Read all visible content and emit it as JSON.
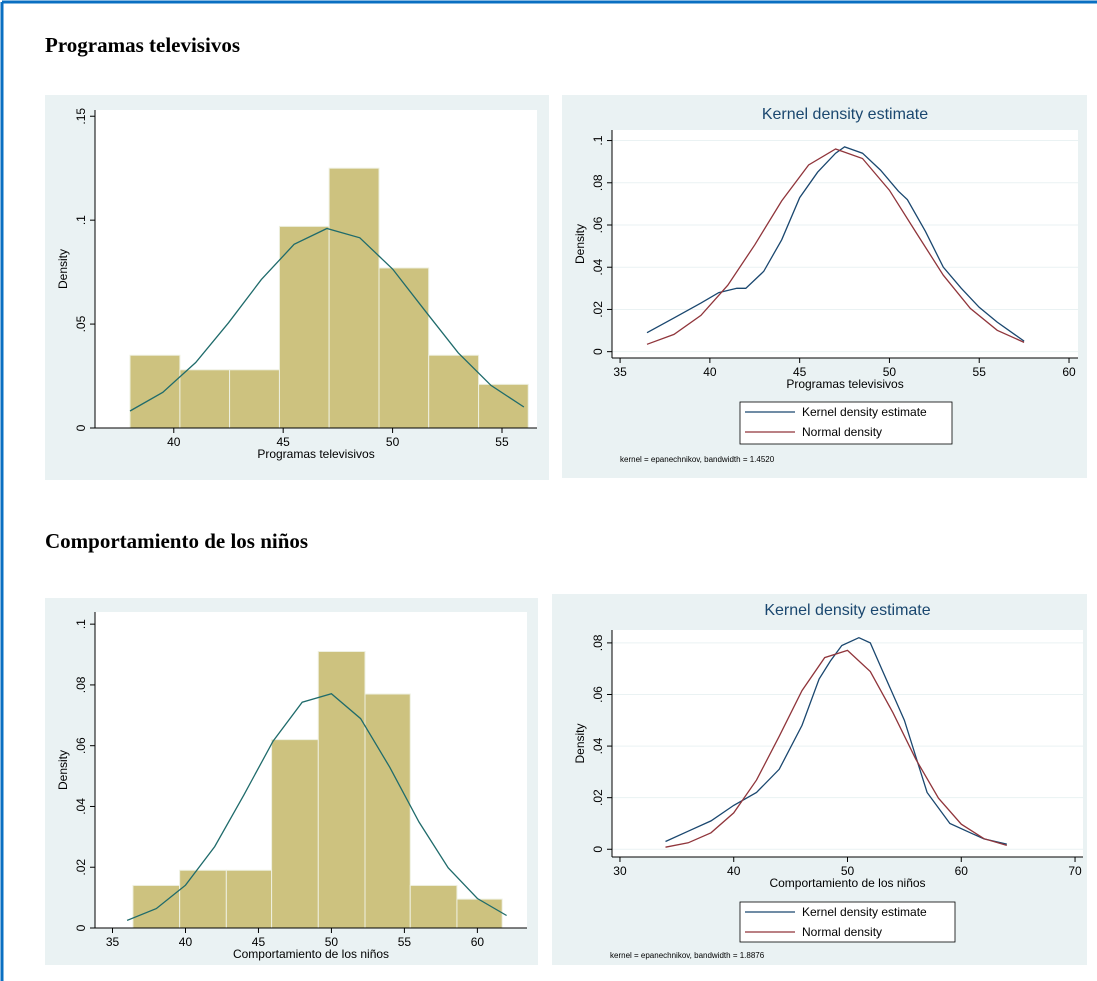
{
  "headings": [
    "Programas televisivos",
    "Comportamiento de los niños"
  ],
  "chart_data": [
    {
      "type": "histogram",
      "x_label": "Programas televisivos",
      "y_label": "Density",
      "bins": [
        38,
        40.28,
        42.55,
        44.83,
        47.1,
        49.38,
        51.65,
        53.93,
        56.2
      ],
      "values": [
        0.035,
        0.028,
        0.028,
        0.097,
        0.125,
        0.077,
        0.035,
        0.021
      ],
      "color": "#cdc27f",
      "series": [
        {
          "color": "#1f6b6b",
          "x": [
            38,
            39.5,
            41,
            42.5,
            44,
            45.5,
            47,
            48.5,
            50,
            51.5,
            53,
            54.5,
            56
          ],
          "values": [
            0.0082,
            0.0172,
            0.0315,
            0.0506,
            0.0714,
            0.0884,
            0.096,
            0.0915,
            0.0765,
            0.0562,
            0.0362,
            0.0205,
            0.0101
          ]
        }
      ],
      "xlim": [
        36.4,
        56.6
      ],
      "ylim": [
        0,
        0.153
      ],
      "xticks": [
        40,
        45,
        50,
        55
      ],
      "yticks": [
        0,
        {
          "value": 0.05,
          "label": ".05"
        },
        {
          "value": 0.1,
          "label": ".1"
        },
        {
          "value": 0.15,
          "label": ".15"
        }
      ],
      "grid": false
    },
    {
      "type": "kde",
      "title": "Kernel density estimate",
      "x_label": "Programas televisivos",
      "y_label": "Density",
      "note": "kernel = epanechnikov, bandwidth = 1.4520",
      "series": [
        {
          "name": "Kernel density estimate",
          "color": "#1a476f",
          "x": [
            36.5,
            38,
            39.5,
            40.5,
            41.5,
            42,
            43,
            44,
            45,
            46,
            47,
            47.5,
            48.5,
            49.5,
            50.5,
            51,
            52,
            53,
            54,
            55,
            56,
            57,
            57.5
          ],
          "values": [
            0.009,
            0.016,
            0.023,
            0.028,
            0.03,
            0.03,
            0.038,
            0.053,
            0.073,
            0.085,
            0.094,
            0.097,
            0.094,
            0.086,
            0.076,
            0.072,
            0.057,
            0.04,
            0.03,
            0.021,
            0.014,
            0.008,
            0.005
          ]
        },
        {
          "name": "Normal density",
          "color": "#90353b",
          "x": [
            36.5,
            38,
            39.5,
            41,
            42.5,
            44,
            45.5,
            47,
            48.5,
            50,
            51.5,
            53,
            54.5,
            56,
            57.5
          ],
          "values": [
            0.0035,
            0.0082,
            0.0172,
            0.0315,
            0.0506,
            0.0714,
            0.0884,
            0.096,
            0.0915,
            0.0765,
            0.0562,
            0.0362,
            0.0205,
            0.0101,
            0.0044
          ]
        }
      ],
      "xlim": [
        34.55,
        60.5
      ],
      "ylim": [
        -0.003,
        0.105
      ],
      "xticks": [
        35,
        40,
        45,
        50,
        55,
        60
      ],
      "yticks": [
        0,
        {
          "value": 0.02,
          "label": ".02"
        },
        {
          "value": 0.04,
          "label": ".04"
        },
        {
          "value": 0.06,
          "label": ".06"
        },
        {
          "value": 0.08,
          "label": ".08"
        },
        {
          "value": 0.1,
          "label": ".1"
        }
      ],
      "grid": true
    },
    {
      "type": "histogram",
      "x_label": "Comportamiento de los niños",
      "y_label": "Density",
      "bins": [
        36.4,
        39.6,
        42.8,
        45.9,
        49.1,
        52.3,
        55.4,
        58.6,
        61.7
      ],
      "values": [
        0.014,
        0.019,
        0.019,
        0.062,
        0.091,
        0.077,
        0.014,
        0.0095
      ],
      "color": "#cdc27f",
      "series": [
        {
          "color": "#1f6b6b",
          "x": [
            36,
            38,
            40,
            42,
            44,
            46,
            48,
            50,
            52,
            54,
            56,
            58,
            60,
            62
          ],
          "values": [
            0.0025,
            0.0064,
            0.0141,
            0.0268,
            0.0438,
            0.0615,
            0.0743,
            0.0771,
            0.0689,
            0.0529,
            0.0349,
            0.0198,
            0.0097,
            0.0041
          ]
        }
      ],
      "xlim": [
        33.8,
        63.4
      ],
      "ylim": [
        0,
        0.104
      ],
      "xticks": [
        35,
        40,
        45,
        50,
        55,
        60
      ],
      "yticks": [
        0,
        {
          "value": 0.02,
          "label": ".02"
        },
        {
          "value": 0.04,
          "label": ".04"
        },
        {
          "value": 0.06,
          "label": ".06"
        },
        {
          "value": 0.08,
          "label": ".08"
        },
        {
          "value": 0.1,
          "label": ".1"
        }
      ],
      "grid": false
    },
    {
      "type": "kde",
      "title": "Kernel density estimate",
      "x_label": "Comportamiento de los niños",
      "y_label": "Density",
      "note": "kernel = epanechnikov, bandwidth = 1.8876",
      "series": [
        {
          "name": "Kernel density estimate",
          "color": "#1a476f",
          "x": [
            34,
            36,
            38,
            40,
            42,
            44,
            46,
            47.5,
            48.5,
            49.5,
            51,
            52,
            53,
            55,
            57,
            59,
            61,
            62,
            64
          ],
          "values": [
            0.003,
            0.007,
            0.011,
            0.017,
            0.022,
            0.031,
            0.048,
            0.066,
            0.073,
            0.079,
            0.082,
            0.08,
            0.07,
            0.05,
            0.022,
            0.01,
            0.006,
            0.004,
            0.002
          ]
        },
        {
          "name": "Normal density",
          "color": "#90353b",
          "x": [
            34,
            36,
            38,
            40,
            42,
            44,
            46,
            48,
            50,
            52,
            54,
            56,
            58,
            60,
            62,
            64
          ],
          "values": [
            0.0008,
            0.0025,
            0.0064,
            0.0141,
            0.0268,
            0.0438,
            0.0615,
            0.0743,
            0.0771,
            0.0689,
            0.0529,
            0.0349,
            0.0198,
            0.0097,
            0.0041,
            0.0015
          ]
        }
      ],
      "xlim": [
        29.3,
        70.7
      ],
      "ylim": [
        -0.003,
        0.085
      ],
      "xticks": [
        30,
        40,
        50,
        60,
        70
      ],
      "yticks": [
        0,
        {
          "value": 0.02,
          "label": ".02"
        },
        {
          "value": 0.04,
          "label": ".04"
        },
        {
          "value": 0.06,
          "label": ".06"
        },
        {
          "value": 0.08,
          "label": ".08"
        }
      ],
      "grid": true
    }
  ]
}
